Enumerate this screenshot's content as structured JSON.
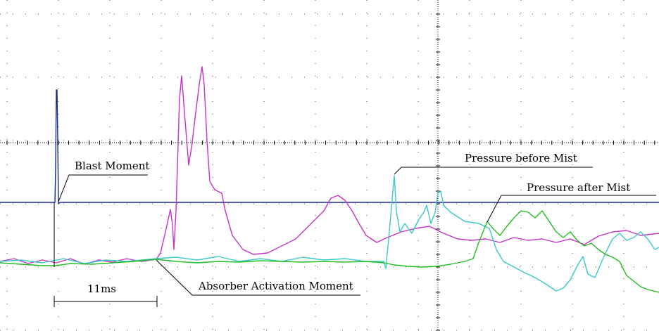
{
  "chart_data": {
    "type": "line",
    "title": "",
    "xlabel": "",
    "ylabel": "",
    "grid": true,
    "time_scale": {
      "label": "11ms",
      "value_ms": 11
    },
    "annotations": [
      {
        "name": "blast-moment",
        "text": "Blast Moment"
      },
      {
        "name": "absorber-activation-moment",
        "text": "Absorber Activation Moment"
      },
      {
        "name": "pressure-before-mist",
        "text": "Pressure before Mist"
      },
      {
        "name": "pressure-after-mist",
        "text": "Pressure after Mist"
      }
    ],
    "series": [
      {
        "color": "#1b2a8c",
        "points": [
          [
            0,
            288
          ],
          [
            78,
            288
          ],
          [
            79,
            240
          ],
          [
            80,
            128
          ],
          [
            81,
            128
          ],
          [
            82,
            200
          ],
          [
            83,
            290
          ],
          [
            85,
            288
          ],
          [
            936,
            288
          ]
        ]
      },
      {
        "color": "#c533c5",
        "points": [
          [
            0,
            372
          ],
          [
            20,
            368
          ],
          [
            40,
            375
          ],
          [
            60,
            370
          ],
          [
            80,
            374
          ],
          [
            100,
            368
          ],
          [
            120,
            376
          ],
          [
            140,
            370
          ],
          [
            160,
            373
          ],
          [
            180,
            368
          ],
          [
            200,
            372
          ],
          [
            222,
            369
          ],
          [
            228,
            360
          ],
          [
            235,
            330
          ],
          [
            242,
            298
          ],
          [
            245,
            320
          ],
          [
            247,
            355
          ],
          [
            250,
            300
          ],
          [
            255,
            140
          ],
          [
            258,
            108
          ],
          [
            262,
            160
          ],
          [
            268,
            235
          ],
          [
            272,
            210
          ],
          [
            278,
            160
          ],
          [
            283,
            120
          ],
          [
            287,
            95
          ],
          [
            290,
            120
          ],
          [
            294,
            200
          ],
          [
            298,
            258
          ],
          [
            305,
            270
          ],
          [
            315,
            275
          ],
          [
            320,
            300
          ],
          [
            330,
            335
          ],
          [
            345,
            355
          ],
          [
            360,
            362
          ],
          [
            380,
            360
          ],
          [
            400,
            350
          ],
          [
            420,
            340
          ],
          [
            440,
            320
          ],
          [
            460,
            300
          ],
          [
            470,
            282
          ],
          [
            480,
            278
          ],
          [
            490,
            285
          ],
          [
            500,
            300
          ],
          [
            510,
            318
          ],
          [
            520,
            335
          ],
          [
            535,
            345
          ],
          [
            550,
            338
          ],
          [
            570,
            330
          ],
          [
            590,
            325
          ],
          [
            610,
            322
          ],
          [
            630,
            332
          ],
          [
            650,
            340
          ],
          [
            670,
            342
          ],
          [
            690,
            340
          ],
          [
            710,
            345
          ],
          [
            730,
            338
          ],
          [
            750,
            342
          ],
          [
            770,
            340
          ],
          [
            790,
            345
          ],
          [
            810,
            340
          ],
          [
            830,
            348
          ],
          [
            850,
            336
          ],
          [
            870,
            330
          ],
          [
            890,
            328
          ],
          [
            910,
            335
          ],
          [
            936,
            332
          ]
        ]
      },
      {
        "color": "#3ac8c8",
        "points": [
          [
            0,
            372
          ],
          [
            30,
            370
          ],
          [
            60,
            374
          ],
          [
            90,
            368
          ],
          [
            120,
            375
          ],
          [
            150,
            370
          ],
          [
            180,
            372
          ],
          [
            222,
            368
          ],
          [
            250,
            366
          ],
          [
            280,
            370
          ],
          [
            310,
            365
          ],
          [
            340,
            372
          ],
          [
            370,
            368
          ],
          [
            400,
            372
          ],
          [
            430,
            366
          ],
          [
            460,
            370
          ],
          [
            490,
            368
          ],
          [
            520,
            372
          ],
          [
            545,
            372
          ],
          [
            548,
            382
          ],
          [
            552,
            340
          ],
          [
            556,
            295
          ],
          [
            560,
            250
          ],
          [
            563,
            300
          ],
          [
            568,
            330
          ],
          [
            575,
            318
          ],
          [
            585,
            332
          ],
          [
            595,
            312
          ],
          [
            602,
            302
          ],
          [
            606,
            292
          ],
          [
            612,
            318
          ],
          [
            618,
            302
          ],
          [
            622,
            275
          ],
          [
            626,
            272
          ],
          [
            630,
            292
          ],
          [
            640,
            302
          ],
          [
            660,
            315
          ],
          [
            680,
            318
          ],
          [
            695,
            325
          ],
          [
            705,
            355
          ],
          [
            715,
            372
          ],
          [
            730,
            380
          ],
          [
            745,
            388
          ],
          [
            760,
            395
          ],
          [
            775,
            404
          ],
          [
            790,
            414
          ],
          [
            800,
            410
          ],
          [
            810,
            398
          ],
          [
            820,
            378
          ],
          [
            828,
            365
          ],
          [
            835,
            390
          ],
          [
            845,
            395
          ],
          [
            860,
            360
          ],
          [
            870,
            340
          ],
          [
            880,
            332
          ],
          [
            890,
            342
          ],
          [
            900,
            338
          ],
          [
            910,
            330
          ],
          [
            920,
            340
          ],
          [
            930,
            355
          ],
          [
            936,
            352
          ]
        ]
      },
      {
        "color": "#22bb22",
        "points": [
          [
            0,
            374
          ],
          [
            30,
            376
          ],
          [
            60,
            378
          ],
          [
            80,
            378
          ],
          [
            100,
            375
          ],
          [
            130,
            376
          ],
          [
            160,
            374
          ],
          [
            190,
            372
          ],
          [
            222,
            369
          ],
          [
            250,
            372
          ],
          [
            280,
            374
          ],
          [
            310,
            372
          ],
          [
            340,
            373
          ],
          [
            370,
            371
          ],
          [
            400,
            372
          ],
          [
            430,
            373
          ],
          [
            460,
            372
          ],
          [
            490,
            373
          ],
          [
            520,
            372
          ],
          [
            545,
            374
          ],
          [
            560,
            377
          ],
          [
            580,
            379
          ],
          [
            600,
            380
          ],
          [
            620,
            379
          ],
          [
            640,
            376
          ],
          [
            660,
            372
          ],
          [
            672,
            368
          ],
          [
            680,
            345
          ],
          [
            686,
            330
          ],
          [
            692,
            315
          ],
          [
            700,
            325
          ],
          [
            710,
            335
          ],
          [
            720,
            322
          ],
          [
            730,
            310
          ],
          [
            740,
            300
          ],
          [
            750,
            302
          ],
          [
            760,
            310
          ],
          [
            770,
            300
          ],
          [
            780,
            315
          ],
          [
            790,
            330
          ],
          [
            800,
            338
          ],
          [
            810,
            330
          ],
          [
            820,
            342
          ],
          [
            830,
            350
          ],
          [
            840,
            346
          ],
          [
            850,
            355
          ],
          [
            860,
            362
          ],
          [
            870,
            366
          ],
          [
            880,
            372
          ],
          [
            890,
            392
          ],
          [
            900,
            400
          ],
          [
            910,
            408
          ],
          [
            920,
            412
          ],
          [
            936,
            416
          ]
        ]
      }
    ]
  }
}
